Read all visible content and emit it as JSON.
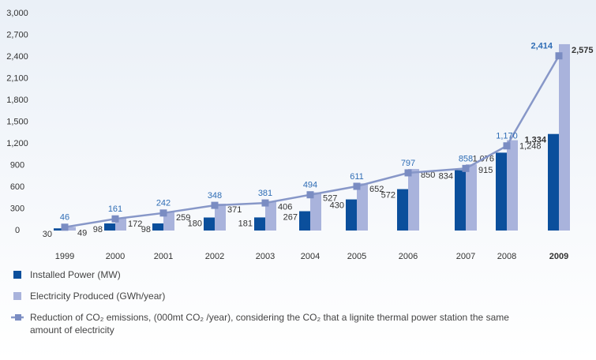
{
  "chart_data": {
    "type": "bar",
    "categories": [
      "1999",
      "2000",
      "2001",
      "2002",
      "2003",
      "2004",
      "2005",
      "2006",
      "2007",
      "2008",
      "2009"
    ],
    "series": [
      {
        "name": "Installed Power (MW)",
        "color": "#0b4f9c",
        "type": "bar",
        "values": [
          30,
          98,
          98,
          180,
          181,
          267,
          430,
          572,
          834,
          1076,
          1334
        ],
        "value_labels": [
          "30",
          "98",
          "98",
          "180",
          "181",
          "267",
          "430",
          "572",
          "834",
          "1,076",
          "1,334"
        ]
      },
      {
        "name": "Electricity Produced (GWh/year)",
        "color": "#a9b3dc",
        "type": "bar",
        "values": [
          49,
          172,
          259,
          371,
          406,
          527,
          652,
          850,
          915,
          1248,
          2575
        ],
        "value_labels": [
          "49",
          "172",
          "259",
          "371",
          "406",
          "527",
          "652",
          "850",
          "915",
          "1,248",
          "2,575"
        ]
      },
      {
        "name": "Reduction of CO₂ emissions, (000mt CO₂ /year), considering the CO₂ that a lignite thermal power station the same amount of electricity",
        "color": "#8797c8",
        "type": "line",
        "values": [
          46,
          161,
          242,
          348,
          381,
          494,
          611,
          797,
          858,
          1170,
          2414
        ],
        "value_labels": [
          "46",
          "161",
          "242",
          "348",
          "381",
          "494",
          "611",
          "797",
          "858",
          "1,170",
          "2,414"
        ]
      }
    ],
    "ylim": [
      0,
      3000
    ],
    "yticks": [
      0,
      300,
      600,
      900,
      {
        "value": 1200,
        "label": "1,200"
      },
      {
        "value": 1500,
        "label": "1,500"
      },
      {
        "value": 1800,
        "label": "1,800"
      },
      {
        "value": 2100,
        "label": "2,100"
      },
      {
        "value": 2400,
        "label": "2,400"
      },
      {
        "value": 2700,
        "label": "2,700"
      },
      {
        "value": 3000,
        "label": "3,000"
      }
    ],
    "grid": false
  }
}
